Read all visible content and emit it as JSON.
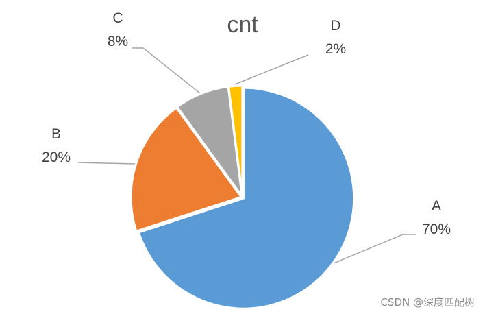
{
  "chart_data": {
    "type": "pie",
    "title": "cnt",
    "categories": [
      "A",
      "B",
      "C",
      "D"
    ],
    "values": [
      70,
      20,
      8,
      2
    ],
    "value_labels": [
      "70%",
      "20%",
      "8%",
      "2%"
    ],
    "colors": [
      "#5b9bd5",
      "#ed7d31",
      "#a5a5a5",
      "#ffc000"
    ],
    "start_angle_deg": 0,
    "direction": "clockwise",
    "label_positions": [
      "outside-right",
      "outside-left",
      "outside-top-left",
      "outside-top-right"
    ],
    "leader_lines": true,
    "legend": "none"
  },
  "watermark": {
    "text": "CSDN @深度匹配树"
  }
}
